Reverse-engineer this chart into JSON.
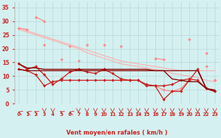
{
  "title": "Vent moyen/en rafales ( km/h )",
  "background_color": "#d4f0f0",
  "grid_color": "#b8d8d8",
  "x": [
    0,
    1,
    2,
    3,
    4,
    5,
    6,
    7,
    8,
    9,
    10,
    11,
    12,
    13,
    14,
    15,
    16,
    17,
    18,
    19,
    20,
    21,
    22,
    23
  ],
  "ylim": [
    0,
    37
  ],
  "yticks": [
    0,
    5,
    10,
    15,
    20,
    25,
    30,
    35
  ],
  "series": [
    {
      "color": "#ffaaaa",
      "linewidth": 0.8,
      "marker": null,
      "markersize": 0,
      "values": [
        27.5,
        26.5,
        25.5,
        24.5,
        23.5,
        22.5,
        21.5,
        20.5,
        19.5,
        18.5,
        17.5,
        16.5,
        15.5,
        15.0,
        14.5,
        14.0,
        13.5,
        13.0,
        12.5,
        12.0,
        12.0,
        12.0,
        12.0,
        12.0
      ]
    },
    {
      "color": "#ffaaaa",
      "linewidth": 0.8,
      "marker": null,
      "markersize": 0,
      "values": [
        27.0,
        26.0,
        25.0,
        24.0,
        23.0,
        22.0,
        21.0,
        20.0,
        18.5,
        17.5,
        16.5,
        15.5,
        14.5,
        14.0,
        13.5,
        13.0,
        12.5,
        12.0,
        11.0,
        10.5,
        10.0,
        9.5,
        8.5,
        8.0
      ]
    },
    {
      "color": "#ff8888",
      "linewidth": 0.9,
      "marker": "D",
      "markersize": 2,
      "values": [
        null,
        null,
        31.5,
        30.0,
        null,
        null,
        null,
        null,
        null,
        null,
        null,
        null,
        null,
        null,
        null,
        null,
        null,
        null,
        null,
        null,
        null,
        null,
        null,
        null
      ]
    },
    {
      "color": "#ff8888",
      "linewidth": 0.9,
      "marker": "D",
      "markersize": 2,
      "values": [
        27.5,
        27.0,
        null,
        null,
        null,
        null,
        null,
        null,
        null,
        null,
        null,
        null,
        null,
        null,
        null,
        null,
        16.5,
        16.0,
        null,
        null,
        null,
        null,
        null,
        8.5
      ]
    },
    {
      "comment": "pink zigzag: x=3 ~21.5, x=6 ~21, x=8 ~21.5, x=10 ~21.5, x=12 ~21, x=20 ~23.5, x=22 ~18.5",
      "color": "#ff8888",
      "linewidth": 0.9,
      "marker": "D",
      "markersize": 2,
      "values": [
        null,
        null,
        null,
        21.5,
        null,
        null,
        21.0,
        null,
        21.5,
        null,
        21.5,
        null,
        21.0,
        null,
        null,
        null,
        null,
        null,
        null,
        null,
        23.5,
        null,
        18.5,
        null
      ]
    },
    {
      "comment": "pink short peaks x=5 ~16, x=7 ~15.5",
      "color": "#ff8888",
      "linewidth": 0.9,
      "marker": "D",
      "markersize": 2,
      "values": [
        null,
        null,
        null,
        null,
        null,
        16.0,
        null,
        15.5,
        null,
        null,
        null,
        null,
        null,
        null,
        null,
        null,
        null,
        null,
        null,
        null,
        null,
        null,
        null,
        null
      ]
    },
    {
      "color": "#ff8888",
      "linewidth": 0.9,
      "marker": "D",
      "markersize": 2,
      "values": [
        null,
        null,
        null,
        null,
        null,
        null,
        null,
        null,
        null,
        null,
        null,
        null,
        null,
        null,
        null,
        null,
        null,
        null,
        null,
        null,
        null,
        null,
        null,
        8.5
      ]
    },
    {
      "comment": "lower pink line x=16 ~6.5, x=17 ~5, x=18 ~4.5, x=19 ~5.5 to 8.5",
      "color": "#ff8888",
      "linewidth": 0.9,
      "marker": "D",
      "markersize": 2,
      "values": [
        null,
        null,
        null,
        null,
        null,
        null,
        null,
        null,
        null,
        null,
        null,
        null,
        null,
        null,
        null,
        null,
        6.5,
        5.0,
        4.5,
        5.5,
        8.5,
        null,
        13.5,
        null
      ]
    },
    {
      "color": "#cc2222",
      "linewidth": 1.0,
      "marker": "D",
      "markersize": 2,
      "values": [
        14.5,
        12.5,
        13.5,
        10.5,
        7.0,
        9.0,
        11.5,
        12.5,
        11.5,
        11.0,
        12.5,
        11.0,
        9.0,
        8.5,
        8.5,
        7.0,
        6.5,
        1.5,
        4.5,
        4.5,
        8.5,
        12.5,
        5.5,
        4.5
      ]
    },
    {
      "color": "#cc2222",
      "linewidth": 1.0,
      "marker": "D",
      "markersize": 2,
      "values": [
        12.5,
        12.0,
        10.5,
        6.5,
        8.0,
        8.5,
        8.5,
        8.5,
        8.5,
        8.5,
        8.5,
        8.5,
        8.5,
        8.5,
        8.5,
        6.5,
        6.5,
        6.5,
        7.0,
        8.5,
        9.0,
        8.5,
        5.5,
        4.5
      ]
    },
    {
      "color": "#880000",
      "linewidth": 1.0,
      "marker": null,
      "markersize": 0,
      "values": [
        14.5,
        13.0,
        13.0,
        12.5,
        12.5,
        12.5,
        12.5,
        12.5,
        12.5,
        12.5,
        12.5,
        12.5,
        12.5,
        12.5,
        12.5,
        12.5,
        12.0,
        12.0,
        12.0,
        12.0,
        12.0,
        12.0,
        5.5,
        5.0
      ]
    },
    {
      "color": "#880000",
      "linewidth": 1.0,
      "marker": null,
      "markersize": 0,
      "values": [
        12.5,
        12.0,
        12.0,
        12.0,
        12.0,
        12.0,
        12.0,
        12.0,
        12.0,
        12.0,
        12.0,
        12.0,
        12.0,
        12.0,
        12.0,
        12.0,
        12.0,
        12.0,
        9.0,
        8.5,
        8.0,
        8.0,
        5.5,
        4.5
      ]
    }
  ],
  "xlabel_color": "#cc2222",
  "tick_color": "#cc2222"
}
